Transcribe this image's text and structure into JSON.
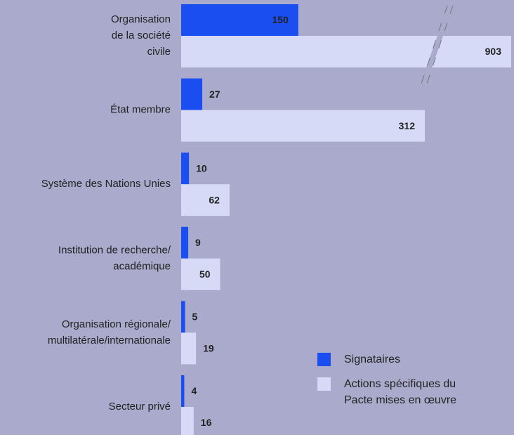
{
  "chart_data": {
    "type": "bar",
    "orientation": "horizontal",
    "axis_break": true,
    "categories": [
      [
        "Organisation",
        "de la société",
        "civile"
      ],
      [
        "État membre"
      ],
      [
        "Système des Nations Unies"
      ],
      [
        "Institution de recherche/",
        "académique"
      ],
      [
        "Organisation régionale/",
        "multilatérale/internationale"
      ],
      [
        "Secteur privé"
      ]
    ],
    "series": [
      {
        "name": "Signataires",
        "color": "#1a4ef0",
        "values": [
          150,
          27,
          10,
          9,
          5,
          4
        ]
      },
      {
        "name": "Actions spécifiques du Pacte mises en œuvre",
        "color": "#d6daf7",
        "values": [
          903,
          312,
          62,
          50,
          19,
          16
        ]
      }
    ],
    "legend": "bottom-right"
  }
}
